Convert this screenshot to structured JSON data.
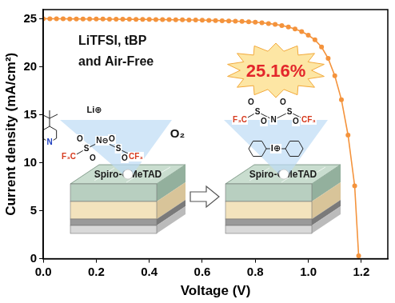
{
  "chart_data": {
    "type": "line",
    "xlabel": "Voltage (V)",
    "ylabel": "Current density (mA/cm²)",
    "color": "#f4933c",
    "marker": "circle",
    "grid": false,
    "xlim": [
      0,
      1.3
    ],
    "xticks": [
      {
        "value": 0,
        "label": "0.0"
      },
      {
        "value": 0.2,
        "label": "0.2"
      },
      {
        "value": 0.4,
        "label": "0.4"
      },
      {
        "value": 0.6,
        "label": "0.6"
      },
      {
        "value": 0.8,
        "label": "0.8"
      },
      {
        "value": 1,
        "label": "1.0"
      },
      {
        "value": 1.2,
        "label": "1.2"
      }
    ],
    "ylim": [
      0,
      26
    ],
    "yticks": [
      0,
      5,
      10,
      15,
      20,
      25
    ],
    "x": [
      0,
      0.025,
      0.05,
      0.075,
      0.1,
      0.125,
      0.15,
      0.175,
      0.2,
      0.225,
      0.25,
      0.275,
      0.3,
      0.325,
      0.35,
      0.375,
      0.4,
      0.425,
      0.45,
      0.475,
      0.5,
      0.525,
      0.55,
      0.575,
      0.6,
      0.625,
      0.65,
      0.675,
      0.7,
      0.725,
      0.75,
      0.775,
      0.8,
      0.825,
      0.85,
      0.875,
      0.9,
      0.925,
      0.95,
      0.975,
      1.0,
      1.025,
      1.05,
      1.075,
      1.1,
      1.125,
      1.15,
      1.175,
      1.19
    ],
    "values": [
      25.05,
      25.05,
      25.04,
      25.04,
      25.03,
      25.03,
      25.02,
      25.02,
      25.01,
      25.01,
      25.0,
      25.0,
      24.99,
      24.99,
      24.98,
      24.98,
      24.97,
      24.96,
      24.96,
      24.95,
      24.94,
      24.93,
      24.92,
      24.91,
      24.9,
      24.88,
      24.86,
      24.84,
      24.82,
      24.79,
      24.76,
      24.72,
      24.68,
      24.62,
      24.55,
      24.46,
      24.34,
      24.18,
      23.97,
      23.7,
      23.33,
      22.84,
      22.1,
      20.9,
      19.1,
      16.6,
      12.9,
      7.6,
      0.3
    ],
    "annotations": {
      "condition": [
        "LiTFSI, tBP",
        "and Air-Free"
      ],
      "efficiency": "25.16%",
      "oxygen": "O₂",
      "layer_left": "Spiro-OMeTAD",
      "layer_right": "Spiro-OMeTAD",
      "left_atoms": [
        "Li⊕",
        "N",
        "F₃C",
        "S",
        "N⊖",
        "S",
        "CF₃",
        "O",
        "O",
        "O",
        "O"
      ],
      "right_atoms": [
        "F₃C",
        "S",
        "N",
        "S",
        "CF₃",
        "O",
        "O",
        "O",
        "O",
        "I⊕"
      ]
    }
  }
}
